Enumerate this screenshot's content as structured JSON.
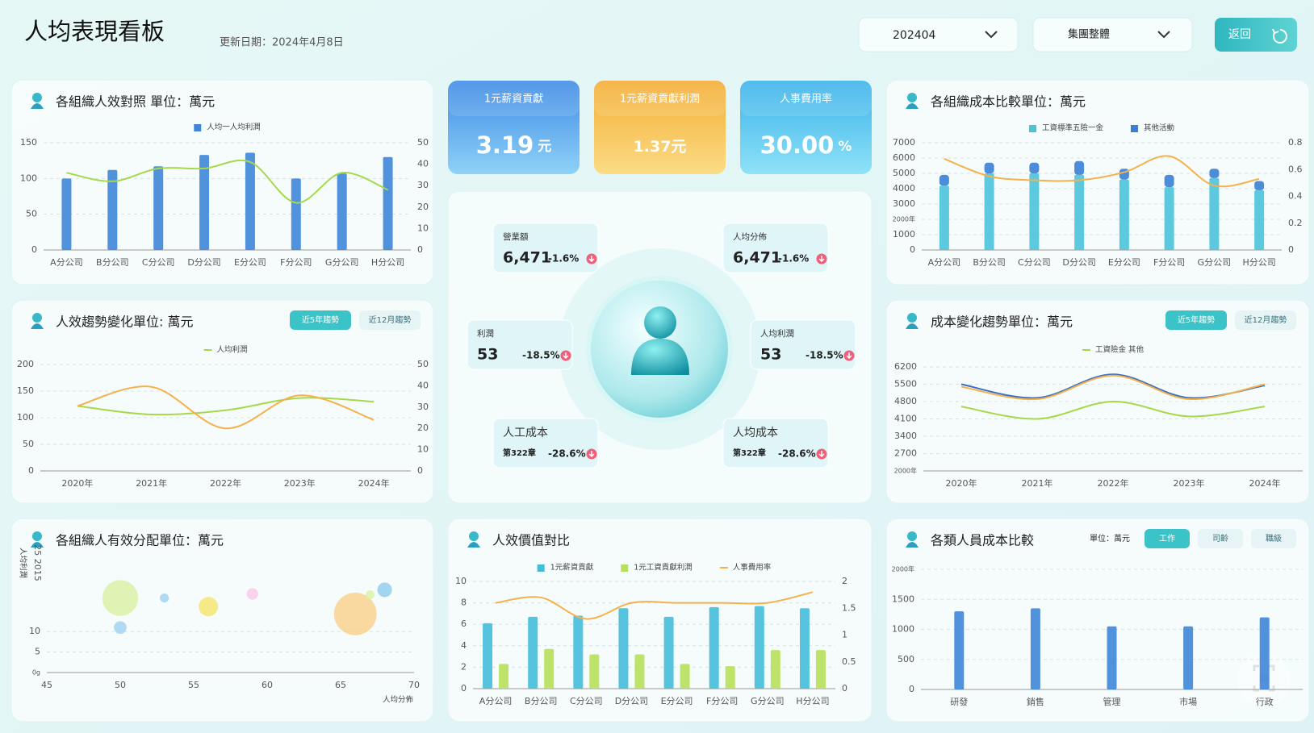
{
  "header": {
    "title": "人均表現看板",
    "updated": "更新日期：2024年4月8日",
    "period": "202404",
    "scope": "集團整體",
    "back": "返回"
  },
  "kpis": [
    {
      "label": "1元薪資貢獻",
      "value": "3.19",
      "unit": "元"
    },
    {
      "label": "1元薪資貢獻利潤",
      "value": "1.37元"
    },
    {
      "label": "人事費用率",
      "value": "30.00",
      "unit": "%"
    }
  ],
  "center": [
    {
      "label": "營業額",
      "value": "6,471",
      "change": "-1.6%"
    },
    {
      "label": "人均分佈",
      "value": "6,471",
      "change": "-1.6%"
    },
    {
      "label": "利潤",
      "value": "53",
      "change": "-18.5%"
    },
    {
      "label": "人均利潤",
      "value": "53",
      "change": "-18.5%"
    },
    {
      "label": "人工成本",
      "value": "第322章",
      "change": "-28.6%"
    },
    {
      "label": "人均成本",
      "value": "第322章",
      "change": "-28.6%"
    }
  ],
  "chart_data": [
    {
      "type": "combo",
      "title": "各組織人效對照 單位：萬元",
      "categories": [
        "A分公司",
        "B分公司",
        "C分公司",
        "D分公司",
        "E分公司",
        "F分公司",
        "G分公司",
        "H分公司"
      ],
      "series": [
        {
          "name": "人均一人均利潤",
          "type": "bar",
          "color": "#3f86d8",
          "values": [
            100,
            112,
            117,
            133,
            136,
            100,
            107,
            130
          ]
        },
        {
          "type": "line",
          "axis": "y2",
          "color": "#a6d94a",
          "values": [
            36,
            32,
            38,
            38,
            41,
            22,
            36,
            28
          ]
        }
      ],
      "ylim": [
        0,
        150
      ],
      "yticks": [
        0,
        50,
        100,
        150
      ],
      "y2lim": [
        0,
        50
      ],
      "y2ticks": [
        0,
        10,
        20,
        30,
        40,
        50
      ],
      "grid": true
    },
    {
      "type": "line",
      "title": "人效趨勢變化單位: 萬元",
      "buttons": [
        "近5年趨勢",
        "近12月趨勢"
      ],
      "categories": [
        "2020年",
        "2021年",
        "2022年",
        "2023年",
        "2024年"
      ],
      "series": [
        {
          "name": "人均利潤",
          "color": "#a6d94a",
          "values": [
            122,
            106,
            114,
            137,
            130
          ]
        },
        {
          "axis": "y2",
          "color": "#f5b14c",
          "values": [
            30.5,
            39.5,
            20,
            35.5,
            24
          ]
        }
      ],
      "ylim": [
        0,
        200
      ],
      "yticks": [
        0,
        50,
        100,
        150,
        200
      ],
      "y2lim": [
        0,
        50
      ],
      "y2ticks": [
        0,
        10,
        20,
        30,
        40,
        50
      ],
      "grid": true
    },
    {
      "type": "scatter",
      "title": "各組織人有效分配單位：萬元",
      "x_label": "人均分佈",
      "y_label": "人均利潤",
      "y_note": "25 2015",
      "points": {
        "x": [
          50,
          50,
          53,
          56,
          59,
          66,
          67,
          68
        ],
        "y": [
          18.2,
          11,
          18.2,
          16.1,
          19.2,
          14.3,
          19,
          20.2
        ],
        "sizes": [
          48,
          6,
          3,
          14,
          5,
          68,
          3,
          8
        ],
        "colors": [
          "#d9f0a3",
          "#9fd0f0",
          "#9fd0f0",
          "#f5e46a",
          "#f8c8e8",
          "#fbd08a",
          "#d9f0a3",
          "#8fcbee"
        ]
      },
      "xlim": [
        45,
        70
      ],
      "xticks": [
        45,
        50,
        55,
        60,
        65,
        70
      ],
      "ylim": [
        0,
        26
      ],
      "yticks": [
        {
          "value": 0,
          "label": "0g"
        },
        5,
        10
      ],
      "grid": true
    },
    {
      "type": "combo",
      "title": "人效價值對比",
      "categories": [
        "A分公司",
        "B分公司",
        "C分公司",
        "D分公司",
        "E分公司",
        "F分公司",
        "G分公司",
        "H分公司"
      ],
      "series": [
        {
          "name": "1元薪資貢獻",
          "type": "bar",
          "color": "#45bcdc",
          "values": [
            6.1,
            6.7,
            6.8,
            7.5,
            6.7,
            7.6,
            7.7,
            7.5
          ]
        },
        {
          "name": "1元工資貢獻利潤",
          "type": "bar",
          "color": "#b7e05a",
          "values": [
            2.3,
            3.7,
            3.2,
            3.2,
            2.3,
            2.1,
            3.6,
            3.6
          ]
        },
        {
          "name": "人事費用率",
          "type": "line",
          "axis": "y2",
          "color": "#f5b14c",
          "values": [
            1.6,
            1.7,
            1.3,
            1.6,
            1.6,
            1.6,
            1.6,
            1.8
          ]
        }
      ],
      "ylim": [
        0,
        10
      ],
      "yticks": [
        0,
        2,
        4,
        6,
        8,
        10
      ],
      "y2lim": [
        0,
        2
      ],
      "y2ticks": [
        0,
        0.5,
        1,
        1.5,
        2
      ],
      "grid": true
    },
    {
      "type": "combo",
      "title": "各組織成本比較單位：萬元",
      "stacked": true,
      "categories": [
        "A分公司",
        "B分公司",
        "C分公司",
        "D分公司",
        "E分公司",
        "F分公司",
        "G分公司",
        "H分公司"
      ],
      "series": [
        {
          "name": "工資標準五險一金",
          "type": "bar",
          "color": "#4cc3dc",
          "values": [
            4200,
            5000,
            5000,
            4900,
            4600,
            4100,
            4700,
            3900
          ]
        },
        {
          "name": "其他活動",
          "type": "bar",
          "color": "#3b7fd4",
          "values": [
            700,
            700,
            700,
            900,
            700,
            800,
            600,
            600
          ]
        },
        {
          "type": "line",
          "axis": "y2",
          "color": "#f5b14c",
          "values": [
            0.68,
            0.55,
            0.52,
            0.52,
            0.58,
            0.7,
            0.48,
            0.53
          ]
        }
      ],
      "ylim": [
        0,
        7000
      ],
      "yticks": [
        0,
        1000,
        {
          "value": 2000,
          "label": "2000年"
        },
        3000,
        4000,
        5000,
        6000,
        7000
      ],
      "y2lim": [
        0,
        0.8
      ],
      "y2ticks": [
        0,
        0.2,
        0.4,
        0.6,
        0.8
      ],
      "grid": true
    },
    {
      "type": "line",
      "title": "成本變化趨勢單位：萬元",
      "buttons": [
        "近5年趨勢",
        "近12月趨勢"
      ],
      "categories": [
        "2020年",
        "2021年",
        "2022年",
        "2023年",
        "2024年"
      ],
      "series": [
        {
          "color": "#3b6fc4",
          "values": [
            5500,
            4950,
            5900,
            4950,
            5450
          ]
        },
        {
          "color": "#f5b14c",
          "values": [
            5400,
            4900,
            5850,
            4900,
            5500
          ]
        },
        {
          "name": "工資險金 其他",
          "color": "#a6d94a",
          "values": [
            4600,
            4100,
            4800,
            4200,
            4600
          ]
        }
      ],
      "ylim": [
        2000,
        6200
      ],
      "yticks": [
        {
          "value": 2000,
          "label": "2000年"
        },
        2700,
        3400,
        4100,
        4800,
        5500,
        6200
      ],
      "grid": true
    },
    {
      "type": "bar",
      "title": "各類人員成本比較",
      "unit": "單位：萬元",
      "buttons": [
        "工作",
        "司齡",
        "職級"
      ],
      "categories": [
        "研發",
        "銷售",
        "管理",
        "市場",
        "行政"
      ],
      "series": [
        {
          "type": "bar",
          "color": "#3f86d8",
          "values": [
            1300,
            1350,
            1050,
            1050,
            1200
          ]
        }
      ],
      "ylim": [
        0,
        2000
      ],
      "yticks": [
        0,
        500,
        1000,
        1500,
        {
          "value": 2000,
          "label": "2000年"
        }
      ],
      "grid": true
    }
  ]
}
